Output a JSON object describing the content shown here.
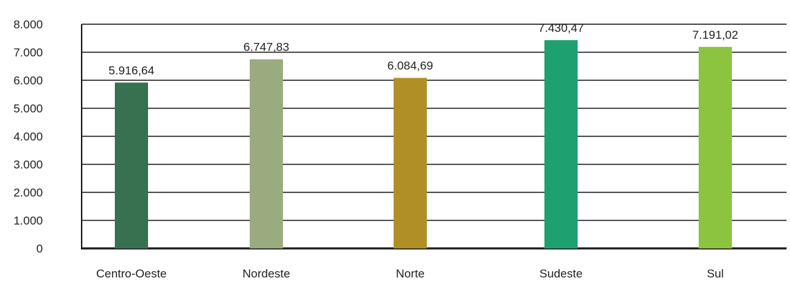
{
  "chart_data": {
    "type": "bar",
    "title": "",
    "xlabel": "",
    "ylabel": "",
    "categories": [
      "Centro-Oeste",
      "Nordeste",
      "Norte",
      "Sudeste",
      "Sul"
    ],
    "values": [
      5916.64,
      6747.83,
      6084.69,
      7430.47,
      7191.02
    ],
    "value_labels": [
      "5.916,64",
      "6.747,83",
      "6.084,69",
      "7.430,47",
      "7.191,02"
    ],
    "colors": [
      "#377150",
      "#9aab80",
      "#b08f27",
      "#1fa070",
      "#8cc43f"
    ],
    "ylim": [
      0,
      8000
    ],
    "y_ticks": [
      0,
      1000,
      2000,
      3000,
      4000,
      5000,
      6000,
      7000,
      8000
    ],
    "y_tick_labels": [
      "0",
      "1.000",
      "2.000",
      "3.000",
      "4.000",
      "5.000",
      "6.000",
      "7.000",
      "8.000"
    ],
    "grid": true,
    "legend": "none"
  }
}
